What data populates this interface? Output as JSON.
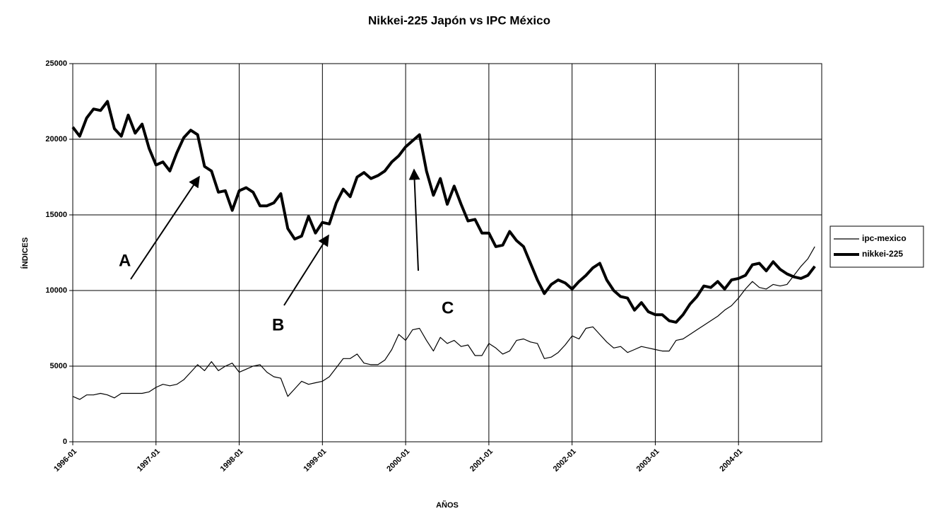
{
  "chart_data": {
    "type": "line",
    "title": "Nikkei-225 Japón vs IPC México",
    "x_label": "AÑOS",
    "y_label": "ÍNDICES",
    "annotations": [
      "A",
      "B",
      "C"
    ],
    "categories": [
      "1996-01",
      null,
      null,
      null,
      null,
      null,
      null,
      null,
      null,
      null,
      null,
      null,
      "1997-01",
      null,
      null,
      null,
      null,
      null,
      null,
      null,
      null,
      null,
      null,
      null,
      "1998-01",
      null,
      null,
      null,
      null,
      null,
      null,
      null,
      null,
      null,
      null,
      null,
      "1999-01",
      null,
      null,
      null,
      null,
      null,
      null,
      null,
      null,
      null,
      null,
      null,
      "2000-01",
      null,
      null,
      null,
      null,
      null,
      null,
      null,
      null,
      null,
      null,
      null,
      "2001-01",
      null,
      null,
      null,
      null,
      null,
      null,
      null,
      null,
      null,
      null,
      null,
      "2002-01",
      null,
      null,
      null,
      null,
      null,
      null,
      null,
      null,
      null,
      null,
      null,
      "2003-01",
      null,
      null,
      null,
      null,
      null,
      null,
      null,
      null,
      null,
      null,
      null,
      "2004-01",
      null,
      null,
      null,
      null,
      null,
      null,
      null,
      null,
      null,
      null,
      null
    ],
    "series": [
      {
        "name": "ipc-mexico",
        "color": "#000000",
        "values": [
          3000,
          2800,
          3100,
          3100,
          3200,
          3100,
          2900,
          3200,
          3200,
          3200,
          3200,
          3300,
          3600,
          3800,
          3700,
          3800,
          4100,
          4600,
          5100,
          4700,
          5300,
          4700,
          5000,
          5200,
          4600,
          4800,
          5000,
          5100,
          4600,
          4300,
          4200,
          3000,
          3500,
          4000,
          3800,
          3900,
          4000,
          4300,
          4900,
          5500,
          5500,
          5800,
          5200,
          5100,
          5100,
          5400,
          6100,
          7100,
          6700,
          7400,
          7500,
          6700,
          6000,
          6900,
          6500,
          6700,
          6300,
          6400,
          5700,
          5700,
          6500,
          6200,
          5800,
          6000,
          6700,
          6800,
          6600,
          6500,
          5500,
          5600,
          5900,
          6400,
          7000,
          6800,
          7500,
          7600,
          7100,
          6600,
          6200,
          6300,
          5900,
          6100,
          6300,
          6200,
          6100,
          6000,
          6000,
          6700,
          6800,
          7100,
          7400,
          7700,
          8000,
          8300,
          8700,
          9000,
          9500,
          10100,
          10600,
          10200,
          10100,
          10400,
          10300,
          10400,
          11000,
          11600,
          12100,
          12900
        ]
      },
      {
        "name": "nikkei-225",
        "color": "#000000",
        "values": [
          20800,
          20200,
          21400,
          22000,
          21900,
          22500,
          20700,
          20200,
          21600,
          20400,
          21000,
          19400,
          18300,
          18500,
          17900,
          19100,
          20100,
          20600,
          20300,
          18200,
          17900,
          16500,
          16600,
          15300,
          16600,
          16800,
          16500,
          15600,
          15600,
          15800,
          16400,
          14100,
          13400,
          13600,
          14900,
          13800,
          14500,
          14400,
          15800,
          16700,
          16200,
          17500,
          17800,
          17400,
          17600,
          17900,
          18500,
          18900,
          19500,
          19900,
          20300,
          17900,
          16300,
          17400,
          15700,
          16900,
          15700,
          14600,
          14700,
          13800,
          13800,
          12900,
          13000,
          13900,
          13300,
          12900,
          11800,
          10700,
          9800,
          10400,
          10700,
          10500,
          10100,
          10600,
          11000,
          11500,
          11800,
          10700,
          10000,
          9600,
          9500,
          8700,
          9200,
          8600,
          8400,
          8400,
          8000,
          7900,
          8400,
          9100,
          9600,
          10300,
          10200,
          10600,
          10100,
          10700,
          10800,
          11000,
          11700,
          11800,
          11300,
          11900,
          11400,
          11100,
          10900,
          10800,
          11000,
          11600
        ]
      }
    ],
    "ylim": [
      0,
      25000
    ],
    "yticks": [
      0,
      5000,
      10000,
      15000,
      20000,
      25000
    ],
    "grid": true,
    "legend": "right"
  }
}
